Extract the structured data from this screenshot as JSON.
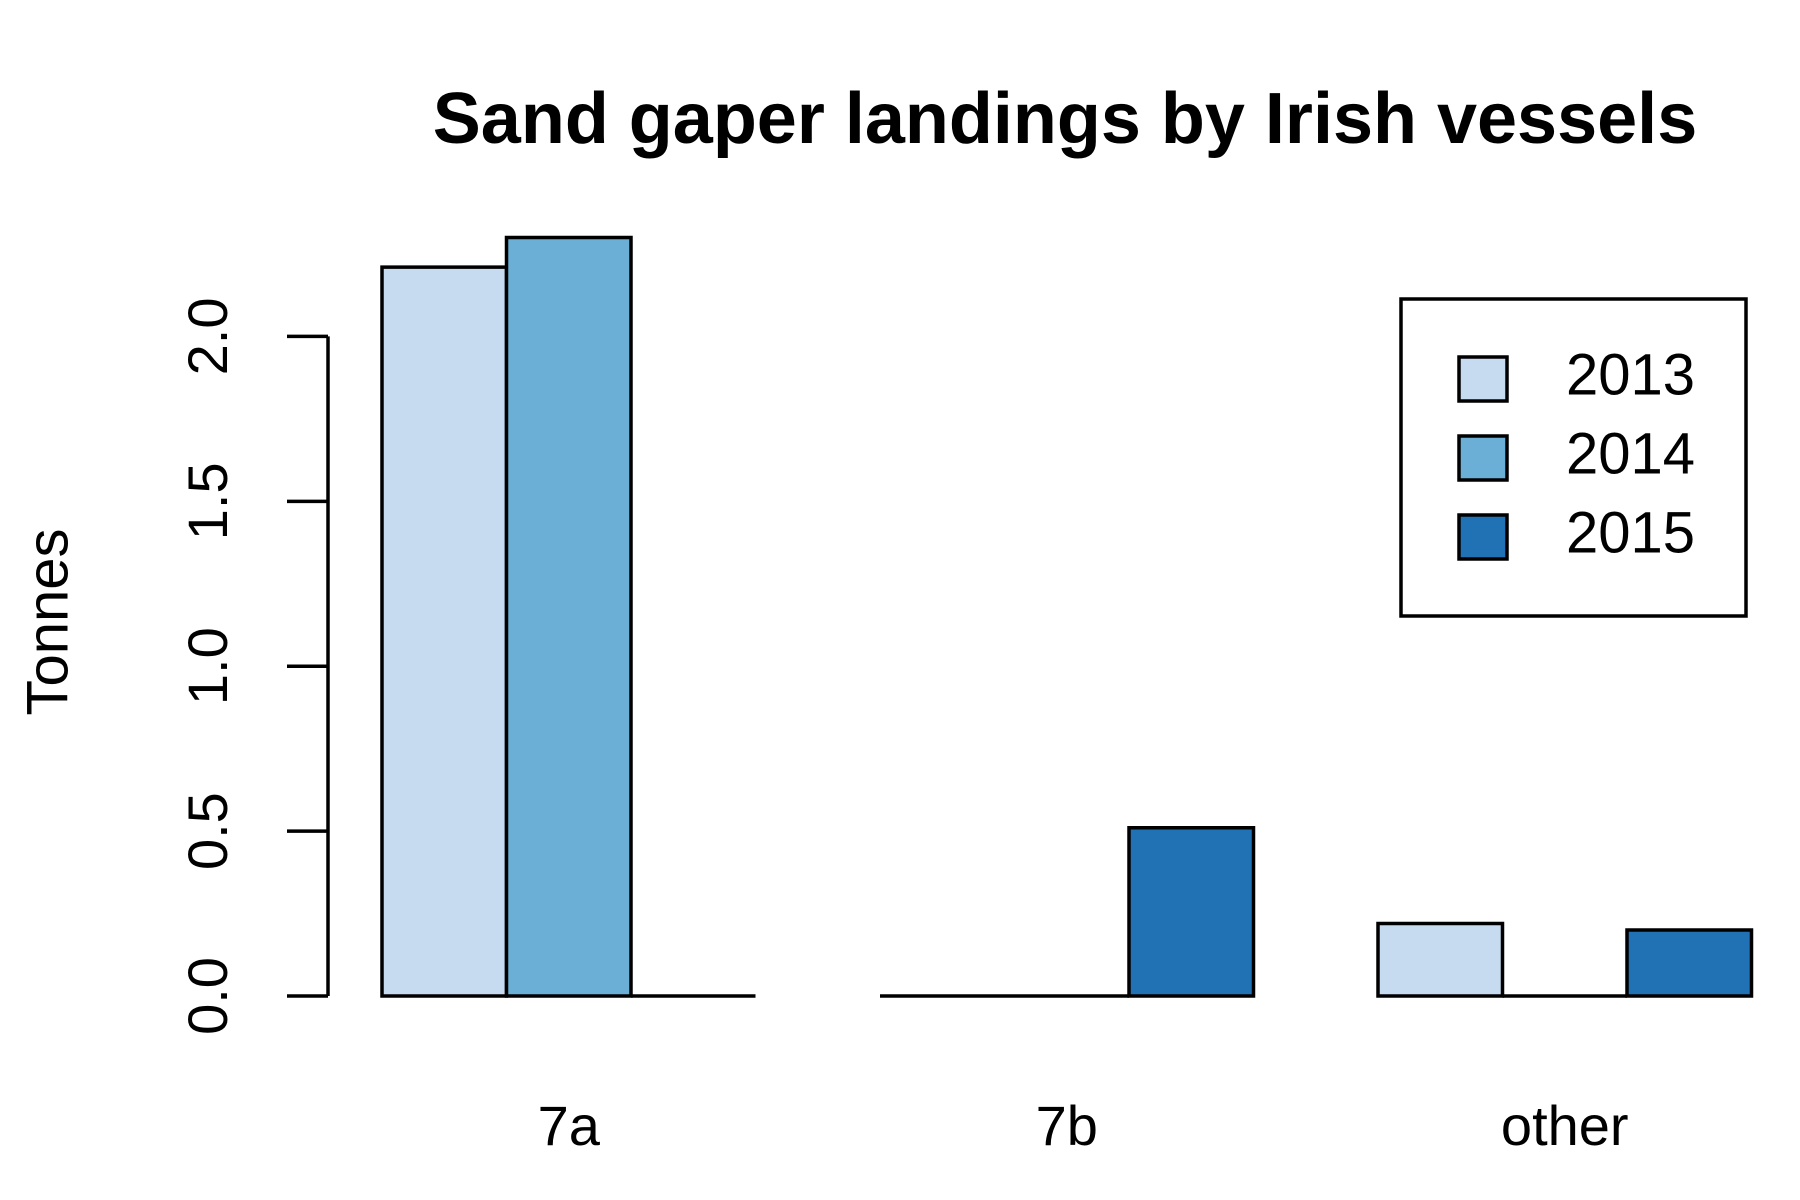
{
  "chart_data": {
    "type": "bar",
    "title": "Sand gaper landings by Irish vessels",
    "y_label": "Tonnes",
    "categories": [
      "7a",
      "7b",
      "other"
    ],
    "series": [
      {
        "name": "2013",
        "color": "#c6dbef",
        "values": [
          2.21,
          0,
          0.22
        ]
      },
      {
        "name": "2014",
        "color": "#6baed6",
        "values": [
          2.3,
          0,
          0
        ]
      },
      {
        "name": "2015",
        "color": "#2171b5",
        "values": [
          0,
          0.51,
          0.2
        ]
      }
    ],
    "ylim": [
      0,
      2.3
    ],
    "yticks": [
      {
        "value": 0,
        "label": "0.0"
      },
      {
        "value": 0.5,
        "label": "0.5"
      },
      {
        "value": 1,
        "label": "1.0"
      },
      {
        "value": 1.5,
        "label": "1.5"
      },
      {
        "value": 2,
        "label": "2.0"
      }
    ],
    "legend": "top-right"
  }
}
